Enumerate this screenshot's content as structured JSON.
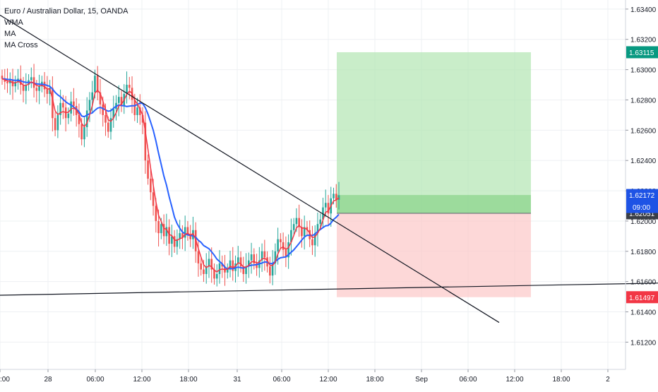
{
  "chart_data": {
    "type": "candlestick",
    "title": "Euro / Australian Dollar, 15, OANDA",
    "indicators": [
      "WMA",
      "MA",
      "MA Cross"
    ],
    "y_axis": {
      "ylim": [
        1.6102,
        1.6346
      ],
      "ticks": [
        "1.63400",
        "1.63200",
        "1.63000",
        "1.62800",
        "1.62600",
        "1.62400",
        "1.62200",
        "1.62000",
        "1.61800",
        "1.61600",
        "1.61400",
        "1.61200"
      ],
      "tick_values": [
        1.634,
        1.632,
        1.63,
        1.628,
        1.626,
        1.624,
        1.622,
        1.62,
        1.618,
        1.616,
        1.614,
        1.612
      ]
    },
    "x_axis": {
      "ticks": [
        ":00",
        "28",
        "06:00",
        "12:00",
        "18:00",
        "31",
        "06:00",
        "12:00",
        "18:00",
        "Sep",
        "06:00",
        "12:00",
        "18:00",
        "2"
      ],
      "tick_index": [
        0,
        68,
        135,
        201,
        267,
        336,
        399,
        465,
        531,
        597,
        663,
        729,
        795,
        861
      ]
    },
    "price_labels": {
      "target": {
        "text": "1.63115",
        "value": 1.63115,
        "color": "#089981"
      },
      "current": {
        "text": "1.62172",
        "value": 1.62172,
        "countdown": "09:00",
        "color": "#1e53e5"
      },
      "entry": {
        "text": "1.62051",
        "value": 1.62051,
        "color": "#3a3e46"
      },
      "stop": {
        "text": "1.61497",
        "value": 1.61497,
        "color": "#f23645"
      }
    },
    "position": {
      "type": "long",
      "entry": 1.62051,
      "target": 1.63115,
      "stop": 1.61497,
      "current": 1.62172
    },
    "trendlines": [
      {
        "name": "descending-trendline",
        "p1": [
          0,
          1.6336
        ],
        "p2": [
          707,
          1.6133
        ]
      },
      {
        "name": "support-line",
        "p1": [
          0,
          1.6151
        ],
        "p2": [
          932,
          1.6159
        ]
      }
    ],
    "colors": {
      "up": "#26a69a",
      "down": "#ef5350",
      "wma": "#f23645",
      "ma": "#2962ff",
      "target_zone": "#b2e5b2",
      "stop_zone": "#fcc7c7",
      "trendline": "#131722",
      "grid": "#eef0f3"
    },
    "series_close": [
      1.6294,
      1.6292,
      1.6291,
      1.6293,
      1.6289,
      1.6292,
      1.6294,
      1.629,
      1.6286,
      1.629,
      1.6293,
      1.6295,
      1.6288,
      1.6286,
      1.6289,
      1.6292,
      1.6287,
      1.6284,
      1.6288,
      1.6268,
      1.626,
      1.627,
      1.6278,
      1.6275,
      1.6268,
      1.6271,
      1.6279,
      1.6276,
      1.627,
      1.6264,
      1.6254,
      1.6262,
      1.6273,
      1.628,
      1.6285,
      1.6296,
      1.6285,
      1.6277,
      1.627,
      1.6265,
      1.6259,
      1.6268,
      1.6274,
      1.6278,
      1.6282,
      1.6276,
      1.6284,
      1.629,
      1.6288,
      1.628,
      1.627,
      1.6275,
      1.627,
      1.6265,
      1.624,
      1.6228,
      1.6219,
      1.621,
      1.62,
      1.6192,
      1.6198,
      1.619,
      1.6196,
      1.6185,
      1.619,
      1.6183,
      1.6188,
      1.6192,
      1.6189,
      1.6196,
      1.6191,
      1.6188,
      1.6194,
      1.618,
      1.6172,
      1.6168,
      1.6165,
      1.617,
      1.6175,
      1.6168,
      1.6162,
      1.6165,
      1.6172,
      1.617,
      1.6166,
      1.6168,
      1.6174,
      1.6167,
      1.6172,
      1.6176,
      1.617,
      1.6165,
      1.617,
      1.6174,
      1.6178,
      1.6172,
      1.6169,
      1.6174,
      1.618,
      1.6176,
      1.617,
      1.6164,
      1.6172,
      1.618,
      1.6188,
      1.6186,
      1.6181,
      1.6176,
      1.6186,
      1.6194,
      1.6198,
      1.6202,
      1.6196,
      1.619,
      1.6196,
      1.6194,
      1.6188,
      1.6184,
      1.6192,
      1.6198,
      1.6201,
      1.6209,
      1.6212,
      1.6205,
      1.6215,
      1.6218,
      1.6214,
      1.6217
    ]
  }
}
